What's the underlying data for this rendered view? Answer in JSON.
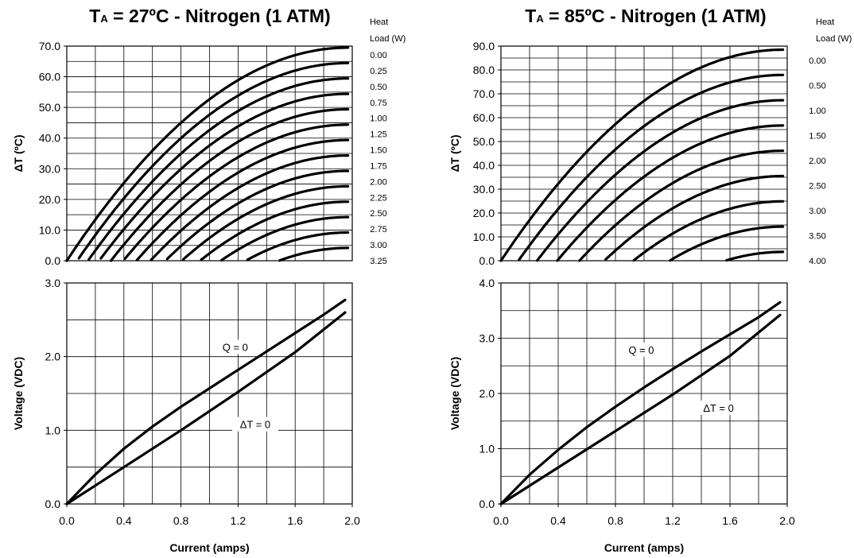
{
  "chart_data": [
    {
      "panel": "left",
      "title": {
        "prefix": "T",
        "sub": "A",
        "suffix": " = 27ºC - Nitrogen (1 ATM)"
      },
      "legend_title": [
        "Heat",
        "Load (W)"
      ],
      "top": {
        "type": "line",
        "ylabel": "ΔT (ºC)",
        "ylim": [
          0,
          70
        ],
        "yticks": [
          "0.0",
          "10.0",
          "20.0",
          "30.0",
          "40.0",
          "50.0",
          "60.0",
          "70.0"
        ],
        "xlim": [
          0,
          2.0
        ],
        "curve_model": {
          "dtmax": 69.5,
          "imax": 1.97,
          "slope_dt_per_watt": 20.1
        },
        "series": [
          {
            "name": "0.00",
            "q": 0.0
          },
          {
            "name": "0.25",
            "q": 0.25
          },
          {
            "name": "0.50",
            "q": 0.5
          },
          {
            "name": "0.75",
            "q": 0.75
          },
          {
            "name": "1.00",
            "q": 1.0
          },
          {
            "name": "1.25",
            "q": 1.25
          },
          {
            "name": "1.50",
            "q": 1.5
          },
          {
            "name": "1.75",
            "q": 1.75
          },
          {
            "name": "2.00",
            "q": 2.0
          },
          {
            "name": "2.25",
            "q": 2.25
          },
          {
            "name": "2.50",
            "q": 2.5
          },
          {
            "name": "2.75",
            "q": 2.75
          },
          {
            "name": "3.00",
            "q": 3.0
          },
          {
            "name": "3.25",
            "q": 3.25
          }
        ]
      },
      "bottom": {
        "type": "line",
        "ylabel": "Voltage (VDC)",
        "xlabel": "Current (amps)",
        "ylim": [
          0,
          3.0
        ],
        "yticks": [
          "0.0",
          "1.0",
          "2.0",
          "3.0"
        ],
        "xlim": [
          0,
          2.0
        ],
        "xticks": [
          "0.0",
          "0.4",
          "0.8",
          "1.2",
          "1.6",
          "2.0"
        ],
        "series": [
          {
            "name": "Q = 0",
            "x": [
              0,
              0.2,
              0.4,
              0.6,
              0.8,
              1.0,
              1.2,
              1.4,
              1.6,
              1.8,
              1.95
            ],
            "y": [
              0,
              0.4,
              0.75,
              1.05,
              1.32,
              1.57,
              1.82,
              2.07,
              2.32,
              2.57,
              2.77
            ]
          },
          {
            "name": "ΔT = 0",
            "x": [
              0,
              0.4,
              0.8,
              1.2,
              1.6,
              1.95
            ],
            "y": [
              0,
              0.5,
              1.0,
              1.52,
              2.06,
              2.6
            ]
          }
        ],
        "annotations": [
          {
            "text": "Q = 0",
            "x": 1.18,
            "y": 2.1
          },
          {
            "text": "ΔT = 0",
            "x": 1.32,
            "y": 1.05
          }
        ]
      }
    },
    {
      "panel": "right",
      "title": {
        "prefix": "T",
        "sub": "A",
        "suffix": " = 85ºC - Nitrogen (1 ATM)"
      },
      "legend_title": [
        "Heat",
        "Load (W)"
      ],
      "top": {
        "type": "line",
        "ylabel": "ΔT (ºC)",
        "ylim": [
          0,
          90
        ],
        "yticks": [
          "0.0",
          "10.0",
          "20.0",
          "30.0",
          "40.0",
          "50.0",
          "60.0",
          "70.0",
          "80.0",
          "90.0"
        ],
        "xlim": [
          0,
          2.0
        ],
        "curve_model": {
          "dtmax": 88.5,
          "imax": 1.97,
          "slope_dt_per_watt": 21.2
        },
        "series": [
          {
            "name": "0.00",
            "q": 0.0
          },
          {
            "name": "0.50",
            "q": 0.5
          },
          {
            "name": "1.00",
            "q": 1.0
          },
          {
            "name": "1.50",
            "q": 1.5
          },
          {
            "name": "2.00",
            "q": 2.0
          },
          {
            "name": "2.50",
            "q": 2.5
          },
          {
            "name": "3.00",
            "q": 3.0
          },
          {
            "name": "3.50",
            "q": 3.5
          },
          {
            "name": "4.00",
            "q": 4.0
          }
        ]
      },
      "bottom": {
        "type": "line",
        "ylabel": "Voltage (VDC)",
        "xlabel": "Current (amps)",
        "ylim": [
          0,
          4.0
        ],
        "yticks": [
          "0.0",
          "1.0",
          "2.0",
          "3.0",
          "4.0"
        ],
        "xlim": [
          0,
          2.0
        ],
        "xticks": [
          "0.0",
          "0.4",
          "0.8",
          "1.2",
          "1.6",
          "2.0"
        ],
        "series": [
          {
            "name": "Q = 0",
            "x": [
              0,
              0.2,
              0.4,
              0.6,
              0.8,
              1.0,
              1.2,
              1.4,
              1.6,
              1.8,
              1.95
            ],
            "y": [
              0,
              0.53,
              0.98,
              1.39,
              1.76,
              2.11,
              2.44,
              2.76,
              3.07,
              3.38,
              3.65
            ]
          },
          {
            "name": "ΔT = 0",
            "x": [
              0,
              0.4,
              0.8,
              1.2,
              1.6,
              1.95
            ],
            "y": [
              0,
              0.66,
              1.32,
              1.98,
              2.68,
              3.42
            ]
          }
        ],
        "annotations": [
          {
            "text": "Q = 0",
            "x": 0.98,
            "y": 2.75
          },
          {
            "text": "ΔT = 0",
            "x": 1.52,
            "y": 1.7
          }
        ]
      }
    }
  ]
}
